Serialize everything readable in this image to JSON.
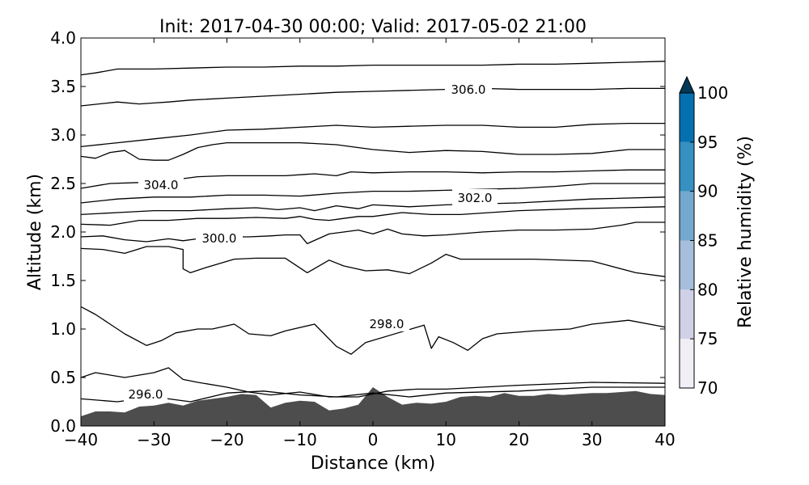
{
  "chart_data": {
    "type": "contour",
    "title": "Init: 2017-04-30 00:00; Valid: 2017-05-02 21:00",
    "xlabel": "Distance (km)",
    "ylabel": "Altitude (km)",
    "xlim": [
      -40,
      40
    ],
    "ylim": [
      0,
      4
    ],
    "x_ticks": [
      "−40",
      "−30",
      "−20",
      "−10",
      "0",
      "10",
      "20",
      "30",
      "40"
    ],
    "y_ticks": [
      "0.0",
      "0.5",
      "1.0",
      "1.5",
      "2.0",
      "2.5",
      "3.0",
      "3.5",
      "4.0"
    ],
    "grid": false,
    "terrain": {
      "color": "#4d4d4d",
      "x": [
        -40,
        -38,
        -36,
        -34,
        -32,
        -30,
        -28,
        -26,
        -24,
        -22,
        -20,
        -18,
        -16,
        -14,
        -12,
        -10,
        -8,
        -6,
        -4,
        -2,
        0,
        2,
        4,
        6,
        8,
        10,
        12,
        14,
        16,
        18,
        20,
        22,
        24,
        26,
        28,
        30,
        32,
        34,
        36,
        38,
        40
      ],
      "y": [
        0.1,
        0.15,
        0.15,
        0.14,
        0.2,
        0.21,
        0.24,
        0.21,
        0.26,
        0.28,
        0.3,
        0.33,
        0.32,
        0.19,
        0.24,
        0.26,
        0.25,
        0.16,
        0.18,
        0.22,
        0.4,
        0.3,
        0.22,
        0.24,
        0.23,
        0.25,
        0.3,
        0.31,
        0.3,
        0.34,
        0.31,
        0.31,
        0.33,
        0.32,
        0.33,
        0.34,
        0.34,
        0.35,
        0.36,
        0.33,
        0.32
      ]
    },
    "contour_label_values": [
      "296.0",
      "298.0",
      "300.0",
      "302.0",
      "304.0",
      "306.0"
    ],
    "isentropes": [
      {
        "x": [
          -40,
          -35,
          -30,
          -25,
          -20,
          -15,
          -10,
          -5,
          0,
          5,
          10,
          20,
          30,
          40
        ],
        "y": [
          0.28,
          0.25,
          0.3,
          0.25,
          0.34,
          0.36,
          0.32,
          0.3,
          0.34,
          0.3,
          0.34,
          0.36,
          0.4,
          0.4
        ]
      },
      {
        "x": [
          -40,
          -38,
          -34,
          -30,
          -28,
          -26,
          -24,
          -20,
          -17,
          -14,
          -10,
          -6,
          -2,
          2,
          6,
          10,
          20,
          30,
          40
        ],
        "y": [
          0.5,
          0.55,
          0.5,
          0.55,
          0.6,
          0.48,
          0.45,
          0.4,
          0.35,
          0.32,
          0.35,
          0.3,
          0.3,
          0.36,
          0.38,
          0.38,
          0.42,
          0.45,
          0.44
        ]
      },
      {
        "x": [
          -40,
          -38,
          -36,
          -34,
          -31,
          -29,
          -27,
          -24,
          -22,
          -19,
          -17,
          -14,
          -12,
          -8,
          -5,
          -3,
          -1,
          7,
          8,
          9,
          11,
          13,
          15,
          17,
          22,
          27,
          30,
          35,
          40
        ],
        "y": [
          1.23,
          1.15,
          1.05,
          0.95,
          0.83,
          0.88,
          0.96,
          1.0,
          1.0,
          1.05,
          0.95,
          0.93,
          0.98,
          1.05,
          0.82,
          0.74,
          0.86,
          1.04,
          0.8,
          0.92,
          0.86,
          0.78,
          0.9,
          0.95,
          0.98,
          1.0,
          1.05,
          1.09,
          1.02
        ]
      },
      {
        "x": [
          -40,
          -37,
          -34,
          -31,
          -28,
          -26,
          -26,
          -25,
          -23,
          -19,
          -16,
          -12,
          -9,
          -6,
          -4,
          -1,
          2,
          5,
          8,
          10,
          12,
          16,
          22,
          30,
          36,
          40
        ],
        "y": [
          1.83,
          1.82,
          1.78,
          1.85,
          1.85,
          1.82,
          1.62,
          1.58,
          1.63,
          1.72,
          1.73,
          1.73,
          1.58,
          1.71,
          1.65,
          1.6,
          1.61,
          1.57,
          1.68,
          1.77,
          1.72,
          1.72,
          1.72,
          1.7,
          1.58,
          1.54
        ]
      },
      {
        "x": [
          -40,
          -37,
          -34,
          -31,
          -28,
          -26,
          -24,
          -20,
          -17,
          -14,
          -12,
          -10,
          -9,
          -6,
          -4,
          -2,
          0,
          2,
          4,
          7,
          10,
          15,
          20,
          25,
          30,
          34,
          36,
          40
        ],
        "y": [
          1.95,
          1.96,
          1.92,
          1.9,
          1.93,
          1.91,
          1.93,
          1.95,
          1.95,
          1.96,
          1.97,
          1.97,
          1.88,
          1.98,
          2.0,
          2.02,
          1.98,
          2.03,
          1.98,
          1.96,
          1.97,
          2.0,
          2.02,
          2.02,
          2.03,
          2.07,
          2.1,
          2.1
        ]
      },
      {
        "x": [
          -40,
          -36,
          -32,
          -28,
          -24,
          -20,
          -16,
          -12,
          -10,
          -8,
          -6,
          -4,
          -2,
          0,
          4,
          8,
          12,
          20,
          28,
          40
        ],
        "y": [
          2.08,
          2.07,
          2.12,
          2.12,
          2.14,
          2.14,
          2.15,
          2.14,
          2.16,
          2.13,
          2.12,
          2.14,
          2.16,
          2.16,
          2.2,
          2.18,
          2.18,
          2.22,
          2.24,
          2.26
        ]
      },
      {
        "x": [
          -40,
          -35,
          -30,
          -25,
          -20,
          -16,
          -13,
          -10,
          -8,
          -5,
          -2,
          0,
          5,
          10,
          20,
          30,
          40
        ],
        "y": [
          2.18,
          2.2,
          2.22,
          2.22,
          2.24,
          2.25,
          2.23,
          2.25,
          2.22,
          2.27,
          2.24,
          2.28,
          2.26,
          2.28,
          2.3,
          2.34,
          2.36
        ]
      },
      {
        "x": [
          -40,
          -35,
          -30,
          -25,
          -20,
          -15,
          -10,
          -5,
          0,
          5,
          10,
          15,
          20,
          25,
          30,
          35,
          40
        ],
        "y": [
          2.3,
          2.34,
          2.36,
          2.36,
          2.38,
          2.38,
          2.37,
          2.4,
          2.42,
          2.42,
          2.43,
          2.44,
          2.45,
          2.47,
          2.5,
          2.5,
          2.5
        ]
      },
      {
        "x": [
          -40,
          -36,
          -32,
          -28,
          -24,
          -20,
          -16,
          -12,
          -8,
          -5,
          -3,
          0,
          5,
          10,
          15,
          20,
          25,
          30,
          35,
          40
        ],
        "y": [
          2.45,
          2.5,
          2.51,
          2.53,
          2.57,
          2.58,
          2.58,
          2.58,
          2.6,
          2.58,
          2.62,
          2.61,
          2.62,
          2.62,
          2.61,
          2.62,
          2.62,
          2.63,
          2.64,
          2.64
        ]
      },
      {
        "x": [
          -40,
          -38,
          -36,
          -34,
          -32,
          -30,
          -28,
          -26,
          -24,
          -22,
          -20,
          -15,
          -10,
          -5,
          0,
          5,
          10,
          15,
          20,
          25,
          30,
          35,
          40
        ],
        "y": [
          2.78,
          2.76,
          2.82,
          2.84,
          2.75,
          2.74,
          2.74,
          2.8,
          2.87,
          2.9,
          2.92,
          2.92,
          2.92,
          2.9,
          2.85,
          2.82,
          2.84,
          2.83,
          2.8,
          2.8,
          2.81,
          2.85,
          2.85
        ]
      },
      {
        "x": [
          -40,
          -35,
          -30,
          -25,
          -20,
          -15,
          -10,
          -5,
          0,
          5,
          10,
          15,
          20,
          25,
          30,
          35,
          40
        ],
        "y": [
          2.88,
          2.92,
          2.96,
          3.0,
          3.05,
          3.06,
          3.08,
          3.1,
          3.08,
          3.09,
          3.1,
          3.1,
          3.08,
          3.08,
          3.11,
          3.12,
          3.12
        ]
      },
      {
        "x": [
          -40,
          -35,
          -32,
          -30,
          -28,
          -25,
          -20,
          -15,
          -10,
          -5,
          0,
          5,
          10,
          15,
          20,
          25,
          30,
          35,
          40
        ],
        "y": [
          3.3,
          3.34,
          3.32,
          3.33,
          3.34,
          3.36,
          3.38,
          3.4,
          3.42,
          3.44,
          3.45,
          3.46,
          3.47,
          3.48,
          3.47,
          3.47,
          3.47,
          3.48,
          3.48
        ]
      },
      {
        "x": [
          -40,
          -38,
          -35,
          -30,
          -25,
          -20,
          -15,
          -10,
          -5,
          0,
          5,
          10,
          15,
          20,
          25,
          30,
          35,
          40
        ],
        "y": [
          3.62,
          3.64,
          3.68,
          3.68,
          3.69,
          3.7,
          3.7,
          3.71,
          3.71,
          3.72,
          3.72,
          3.72,
          3.72,
          3.73,
          3.73,
          3.74,
          3.75,
          3.76
        ]
      }
    ],
    "colorbar": {
      "label": "Relative humidity (%)",
      "ticks": [
        "70",
        "75",
        "80",
        "85",
        "90",
        "95",
        "100"
      ],
      "range": [
        70,
        100
      ],
      "extend": "max",
      "colors": [
        "#f1eef6",
        "#d0d1e6",
        "#a6bddb",
        "#74a9cf",
        "#3690c0",
        "#0570b0",
        "#045a8d",
        "#023858"
      ]
    }
  }
}
